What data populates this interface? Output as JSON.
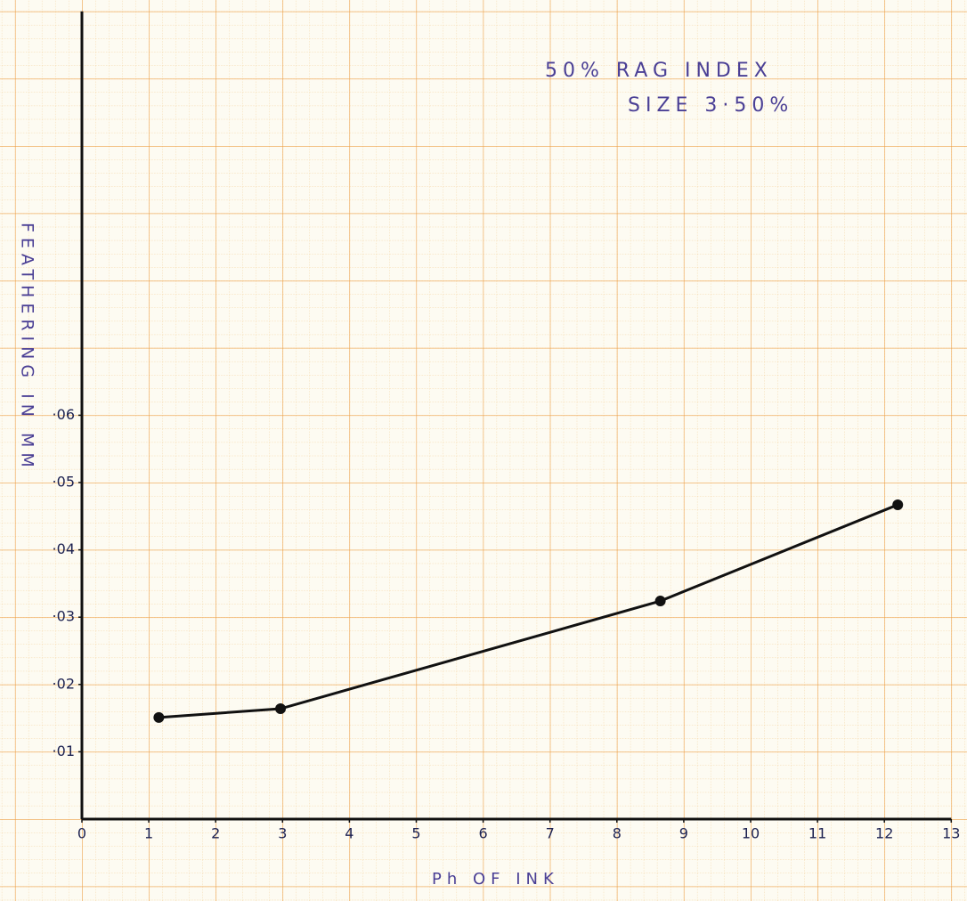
{
  "chart_data": {
    "type": "line",
    "annotations": [
      "50% RAG INDEX",
      "SIZE 3·50%"
    ],
    "xlabel": "Ph OF INK",
    "ylabel": "FEATHERING IN MM",
    "x": [
      1.15,
      2.97,
      8.65,
      12.2
    ],
    "series": [
      {
        "color": "#111111",
        "values": [
          0.0151,
          0.0164,
          0.0324,
          0.0467
        ]
      }
    ],
    "xlim": [
      0,
      13
    ],
    "ylim": [
      0,
      0.12
    ],
    "xticks": [
      0,
      1,
      2,
      3,
      4,
      5,
      6,
      7,
      8,
      9,
      10,
      11,
      12,
      13
    ],
    "yticks": [
      {
        "value": 0.01,
        "label": "·01"
      },
      {
        "value": 0.02,
        "label": "·02"
      },
      {
        "value": 0.03,
        "label": "·03"
      },
      {
        "value": 0.04,
        "label": "·04"
      },
      {
        "value": 0.05,
        "label": "·05"
      },
      {
        "value": 0.06,
        "label": "·06"
      }
    ]
  }
}
